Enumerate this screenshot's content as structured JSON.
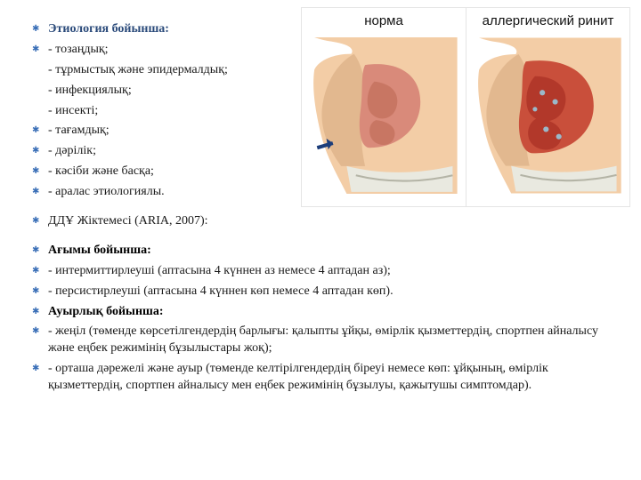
{
  "colors": {
    "bullet": "#3a6fb7",
    "heading": "#2a4a7a",
    "text": "#1a1a1a",
    "imgBorder": "#e5e5e5",
    "skin": "#f3cda6",
    "skinShade": "#e2b88f",
    "cavityNormal": "#d98a7a",
    "cavityInflamed": "#c94f3b",
    "cartilage": "#e9e9e0",
    "mucusDot": "#9bb8c9",
    "bg": "#ffffff"
  },
  "images": {
    "left": {
      "label": "норма"
    },
    "right": {
      "label": "аллергический ринит"
    }
  },
  "lines": [
    {
      "type": "heading1",
      "text": "Этиология бойынша:",
      "bullet": true
    },
    {
      "type": "item",
      "text": "- тозаңдық;",
      "bullet": true
    },
    {
      "type": "item",
      "text": "- тұрмыстық және эпидермалдық;",
      "bullet": false
    },
    {
      "type": "item",
      "text": "- инфекциялық;",
      "bullet": false
    },
    {
      "type": "item",
      "text": "- инсекті;",
      "bullet": false
    },
    {
      "type": "item",
      "text": "- тағамдық;",
      "bullet": true
    },
    {
      "type": "item",
      "text": "- дәрілік;",
      "bullet": true
    },
    {
      "type": "item",
      "text": "- кәсіби және басқа;",
      "bullet": true
    },
    {
      "type": "item",
      "text": "- аралас этиологиялы.",
      "bullet": true
    },
    {
      "type": "spacer"
    },
    {
      "type": "item",
      "text": "ДДҰ Жіктемесі (ARIA, 2007):",
      "bullet": true,
      "widenFromHere": true
    },
    {
      "type": "spacer"
    },
    {
      "type": "heading2",
      "text": "Ағымы бойынша:",
      "bullet": true
    },
    {
      "type": "item",
      "text": "- интермиттирлеуші (аптасына 4 күннен аз немесе 4 аптадан аз);",
      "bullet": true
    },
    {
      "type": "item",
      "text": "- персистирлеуші (аптасына 4 күннен көп немесе 4 аптадан көп).",
      "bullet": true
    },
    {
      "type": "item",
      "text": "",
      "bullet": true
    },
    {
      "type": "heading2",
      "text": "Ауырлық бойынша:",
      "bullet": false
    },
    {
      "type": "item",
      "text": "-  жеңіл (төменде көрсетілгендердің барлығы: қалыпты ұйқы, өмірлік қызметтердің, спортпен айналысу және еңбек режимінің бұзылыстары жоқ);",
      "bullet": true
    },
    {
      "type": "item",
      "text": "- орташа дәрежелі және ауыр (төменде келтірілгендердің біреуі немесе көп: ұйқының, өмірлік қызметтердің, спортпен айналысу мен еңбек режимінің бұзылуы, қажытушы симптомдар).",
      "bullet": true
    }
  ]
}
